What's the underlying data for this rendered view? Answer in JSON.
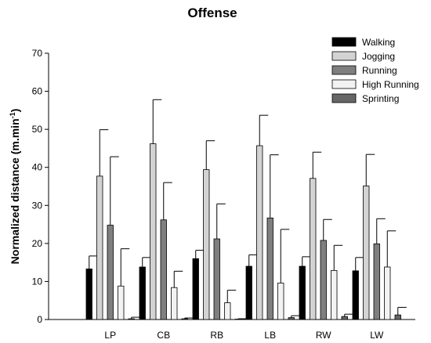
{
  "chart_data": {
    "type": "bar",
    "title": "Offense",
    "ylabel": "Normalized distance  (m.min",
    "ylabel_sup": "-1",
    "ylabel_close": ")",
    "xlabel": "",
    "ylim": [
      0,
      70
    ],
    "yticks": [
      0,
      10,
      20,
      30,
      40,
      50,
      60,
      70
    ],
    "categories": [
      "LP",
      "CB",
      "RB",
      "LB",
      "RW",
      "LW"
    ],
    "legend_position": "top-right",
    "error_bars": "upper",
    "series": [
      {
        "name": "Walking",
        "color": "#000000",
        "values": [
          13.3,
          13.8,
          16.0,
          14.0,
          14.0,
          12.8
        ],
        "errors": [
          3.4,
          2.5,
          2.2,
          3.0,
          2.5,
          3.5
        ]
      },
      {
        "name": "Jogging",
        "color": "#d3d3d3",
        "values": [
          37.7,
          46.2,
          39.4,
          45.7,
          37.1,
          35.1
        ],
        "errors": [
          12.2,
          11.6,
          7.6,
          8.0,
          6.9,
          8.3
        ]
      },
      {
        "name": "Running",
        "color": "#7f7f7f",
        "values": [
          24.8,
          26.2,
          21.2,
          26.7,
          20.8,
          19.9
        ],
        "errors": [
          18.0,
          9.8,
          9.2,
          16.6,
          5.5,
          6.6
        ]
      },
      {
        "name": "High Running",
        "color": "#f2f2f2",
        "values": [
          8.8,
          8.4,
          4.4,
          9.6,
          12.9,
          13.8
        ],
        "errors": [
          9.8,
          4.3,
          3.3,
          14.1,
          6.6,
          9.5
        ]
      },
      {
        "name": "Sprinting",
        "color": "#666666",
        "values": [
          0.2,
          0.2,
          0.1,
          0.5,
          0.8,
          1.2
        ],
        "errors": [
          0.4,
          0.2,
          0.1,
          0.5,
          0.6,
          2.0
        ]
      }
    ]
  }
}
